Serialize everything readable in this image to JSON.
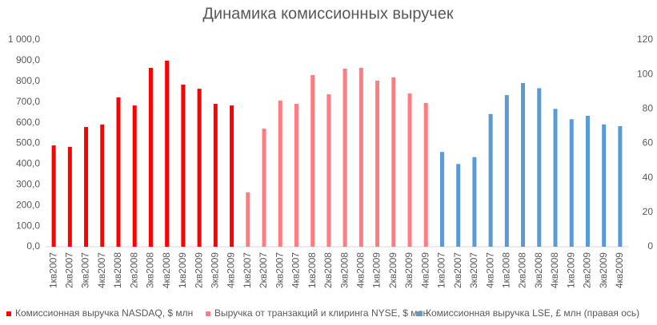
{
  "chart_data": {
    "type": "bar",
    "title": "Динамика комиссионных выручек",
    "categories": [
      "1кв2007",
      "2кв2007",
      "3кв2007",
      "4кв2007",
      "1кв2008",
      "2кв2008",
      "3кв2008",
      "4кв2008",
      "1кв2009",
      "2кв2009",
      "3кв2009",
      "4кв2009",
      "1кв2007",
      "2кв2007",
      "3кв2007",
      "4кв2007",
      "1кв2008",
      "2кв2008",
      "3кв2008",
      "4кв2008",
      "1кв2009",
      "2кв2009",
      "3кв2009",
      "4кв2009",
      "1кв2007",
      "2кв2007",
      "3кв2007",
      "4кв2007",
      "1кв2008",
      "2кв2008",
      "3кв2008",
      "4кв2008",
      "1кв2009",
      "2кв2009",
      "3кв2009",
      "4кв2009"
    ],
    "series": [
      {
        "name": "Комиссионная выручка NASDAQ, $ млн",
        "color": "#ff0000",
        "values": [
          490,
          483,
          579,
          591,
          722,
          683,
          865,
          900,
          784,
          764,
          691,
          683,
          null,
          null,
          null,
          null,
          null,
          null,
          null,
          null,
          null,
          null,
          null,
          null,
          null,
          null,
          null,
          null,
          null,
          null,
          null,
          null,
          null,
          null,
          null,
          null
        ]
      },
      {
        "name": "Выручка от транзакций и клиринга NYSE, $ млн",
        "color": "#ff7c80",
        "values": [
          null,
          null,
          null,
          null,
          null,
          null,
          null,
          null,
          null,
          null,
          null,
          null,
          263,
          571,
          707,
          691,
          830,
          737,
          861,
          865,
          803,
          819,
          741,
          695,
          null,
          null,
          null,
          null,
          null,
          null,
          null,
          null,
          null,
          null,
          null,
          null
        ]
      },
      {
        "name": "Комиссионная выручка LSE, £ млн  (правая ось)",
        "color": "#5b9bd5",
        "axis": "y2",
        "values": [
          null,
          null,
          null,
          null,
          null,
          null,
          null,
          null,
          null,
          null,
          null,
          null,
          null,
          null,
          null,
          null,
          null,
          null,
          null,
          null,
          null,
          null,
          null,
          null,
          55,
          48,
          52,
          77,
          88,
          95,
          92,
          80,
          74,
          76,
          71,
          70
        ]
      }
    ],
    "ylim": [
      0,
      1000
    ],
    "yticks": [
      {
        "value": 0,
        "label": "0,0"
      },
      {
        "value": 100,
        "label": "100,0"
      },
      {
        "value": 200,
        "label": "200,0"
      },
      {
        "value": 300,
        "label": "300,0"
      },
      {
        "value": 400,
        "label": "400,0"
      },
      {
        "value": 500,
        "label": "500,0"
      },
      {
        "value": 600,
        "label": "600,0"
      },
      {
        "value": 700,
        "label": "700,0"
      },
      {
        "value": 800,
        "label": "800,0"
      },
      {
        "value": 900,
        "label": "900,0"
      },
      {
        "value": 1000,
        "label": "1 000,0"
      }
    ],
    "y2lim": [
      0,
      120
    ],
    "y2ticks": [
      0,
      20,
      40,
      60,
      80,
      100,
      120
    ],
    "grid": false,
    "legend": "bottom"
  }
}
